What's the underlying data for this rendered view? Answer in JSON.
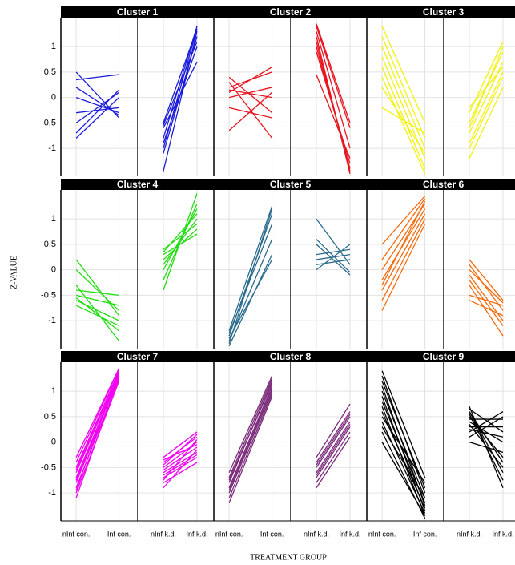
{
  "chart_data": {
    "type": "line",
    "xlabel": "TREATMENT GROUP",
    "ylabel": "Z-VALUE",
    "categories": [
      "nInf con.",
      "Inf con.",
      "nInf k.d.",
      "Inf k.d."
    ],
    "ylim": [
      -1.55,
      1.57
    ],
    "yticks": [
      1,
      0.5,
      0,
      -0.5,
      -1
    ],
    "grid": true,
    "panels": [
      {
        "title": "Cluster 1",
        "color": "#1a1adb",
        "lines": [
          [
            0.5,
            -0.4,
            -0.5,
            1.35
          ],
          [
            0.35,
            0.45,
            -0.8,
            1.4
          ],
          [
            0.0,
            -0.3,
            -1.1,
            1.2
          ],
          [
            -0.5,
            0.1,
            -1.45,
            1.3
          ],
          [
            -0.8,
            0.0,
            -0.6,
            0.7
          ],
          [
            -0.7,
            0.15,
            -0.9,
            1.0
          ],
          [
            0.2,
            -0.35,
            -0.55,
            1.1
          ],
          [
            -0.3,
            -0.2,
            -1.0,
            1.35
          ]
        ]
      },
      {
        "title": "Cluster 2",
        "color": "#e8141f",
        "lines": [
          [
            0.4,
            -0.3,
            1.45,
            -0.5
          ],
          [
            0.1,
            0.6,
            1.2,
            -1.5
          ],
          [
            -0.65,
            0.1,
            0.45,
            -1.2
          ],
          [
            0.3,
            -0.8,
            1.3,
            -1.0
          ],
          [
            0.0,
            0.2,
            1.0,
            -1.4
          ],
          [
            -0.2,
            -0.4,
            1.4,
            -0.6
          ],
          [
            0.2,
            0.5,
            0.9,
            -1.3
          ],
          [
            0.15,
            0.0,
            1.1,
            -1.45
          ]
        ]
      },
      {
        "title": "Cluster 3",
        "color": "#f2f20c",
        "lines": [
          [
            1.4,
            -0.5,
            -1.2,
            0.2
          ],
          [
            1.2,
            -0.8,
            -0.9,
            0.5
          ],
          [
            1.0,
            -1.0,
            -0.7,
            0.7
          ],
          [
            0.8,
            -1.2,
            -0.5,
            0.9
          ],
          [
            0.6,
            -1.4,
            -0.3,
            1.1
          ],
          [
            0.4,
            -1.5,
            -0.2,
            0.6
          ],
          [
            0.2,
            -1.1,
            -1.0,
            0.4
          ],
          [
            -0.2,
            -0.7,
            -0.6,
            1.0
          ]
        ]
      },
      {
        "title": "Cluster 4",
        "color": "#22dd11",
        "lines": [
          [
            0.2,
            -0.9,
            -0.4,
            1.5
          ],
          [
            -0.3,
            -1.4,
            0.0,
            1.2
          ],
          [
            -0.5,
            -0.7,
            0.3,
            0.7
          ],
          [
            -0.7,
            -1.1,
            0.1,
            1.0
          ],
          [
            -0.4,
            -0.5,
            0.4,
            0.9
          ],
          [
            -0.6,
            -1.0,
            -0.2,
            1.3
          ],
          [
            0.0,
            -0.8,
            0.2,
            0.8
          ],
          [
            -0.55,
            -1.2,
            0.35,
            1.1
          ]
        ]
      },
      {
        "title": "Cluster 5",
        "color": "#2a6b8c",
        "lines": [
          [
            -1.2,
            1.25,
            1.0,
            0.1
          ],
          [
            -1.3,
            1.1,
            0.5,
            -0.1
          ],
          [
            -1.4,
            0.6,
            0.3,
            0.4
          ],
          [
            -1.5,
            0.3,
            0.1,
            0.2
          ],
          [
            -1.25,
            0.9,
            0.0,
            0.5
          ],
          [
            -1.35,
            0.2,
            0.6,
            -0.05
          ],
          [
            -1.45,
            1.2,
            0.2,
            0.3
          ]
        ]
      },
      {
        "title": "Cluster 6",
        "color": "#f56a0a",
        "lines": [
          [
            0.5,
            1.45,
            0.2,
            -0.6
          ],
          [
            0.2,
            1.4,
            0.1,
            -0.8
          ],
          [
            0.0,
            1.3,
            -0.1,
            -1.0
          ],
          [
            -0.2,
            1.2,
            -0.3,
            -1.3
          ],
          [
            -0.4,
            1.1,
            -0.5,
            -0.7
          ],
          [
            -0.6,
            1.0,
            -0.6,
            -0.9
          ],
          [
            -0.8,
            0.9,
            -0.2,
            -1.1
          ],
          [
            -0.3,
            1.35,
            0.0,
            -0.65
          ]
        ]
      },
      {
        "title": "Cluster 7",
        "color": "#f000f0",
        "lines": [
          [
            -0.3,
            1.45,
            -0.3,
            0.2
          ],
          [
            -0.5,
            1.4,
            -0.4,
            0.1
          ],
          [
            -0.6,
            1.35,
            -0.5,
            0.0
          ],
          [
            -0.7,
            1.3,
            -0.55,
            -0.1
          ],
          [
            -0.8,
            1.3,
            -0.6,
            -0.2
          ],
          [
            -0.9,
            1.25,
            -0.7,
            -0.3
          ],
          [
            -1.0,
            1.2,
            -0.8,
            -0.4
          ],
          [
            -1.1,
            1.3,
            -0.9,
            -0.15
          ],
          [
            -0.4,
            1.45,
            -0.35,
            -0.05
          ],
          [
            -0.55,
            1.4,
            -0.45,
            0.15
          ],
          [
            -0.75,
            1.35,
            -0.65,
            -0.25
          ],
          [
            -0.95,
            1.4,
            -0.75,
            0.05
          ]
        ]
      },
      {
        "title": "Cluster 8",
        "color": "#7a2a7a",
        "lines": [
          [
            -0.6,
            1.3,
            -0.3,
            0.75
          ],
          [
            -0.7,
            1.25,
            -0.4,
            0.6
          ],
          [
            -0.8,
            1.2,
            -0.5,
            0.5
          ],
          [
            -0.9,
            1.1,
            -0.6,
            0.4
          ],
          [
            -1.0,
            1.0,
            -0.7,
            0.3
          ],
          [
            -1.1,
            0.95,
            -0.8,
            0.2
          ],
          [
            -1.2,
            0.9,
            -0.9,
            0.1
          ],
          [
            -0.75,
            1.15,
            -0.45,
            0.55
          ],
          [
            -0.95,
            1.05,
            -0.65,
            0.35
          ]
        ]
      },
      {
        "title": "Cluster 9",
        "color": "#000000",
        "lines": [
          [
            1.4,
            -0.7,
            0.7,
            -0.9
          ],
          [
            1.2,
            -0.9,
            0.6,
            -0.6
          ],
          [
            1.0,
            -1.1,
            0.5,
            -0.3
          ],
          [
            0.8,
            -1.2,
            0.4,
            0.0
          ],
          [
            0.6,
            -1.3,
            0.3,
            0.3
          ],
          [
            0.4,
            -1.4,
            0.2,
            0.6
          ],
          [
            0.2,
            -1.5,
            0.1,
            0.5
          ],
          [
            0.0,
            -1.45,
            0.0,
            -0.2
          ],
          [
            1.3,
            -1.0,
            0.65,
            0.2
          ],
          [
            0.9,
            -1.35,
            0.55,
            -0.75
          ],
          [
            0.5,
            -0.8,
            0.45,
            0.45
          ],
          [
            1.1,
            -1.25,
            0.35,
            -0.5
          ],
          [
            0.7,
            -1.45,
            0.25,
            0.1
          ],
          [
            0.3,
            -1.1,
            0.6,
            -0.4
          ]
        ]
      }
    ]
  }
}
